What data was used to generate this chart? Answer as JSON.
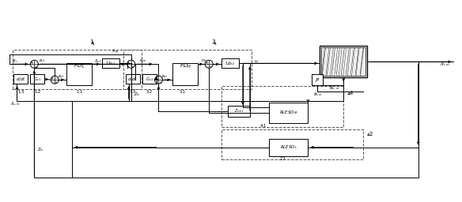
{
  "fig_width": 5.84,
  "fig_height": 2.56,
  "bg_color": "#ffffff"
}
